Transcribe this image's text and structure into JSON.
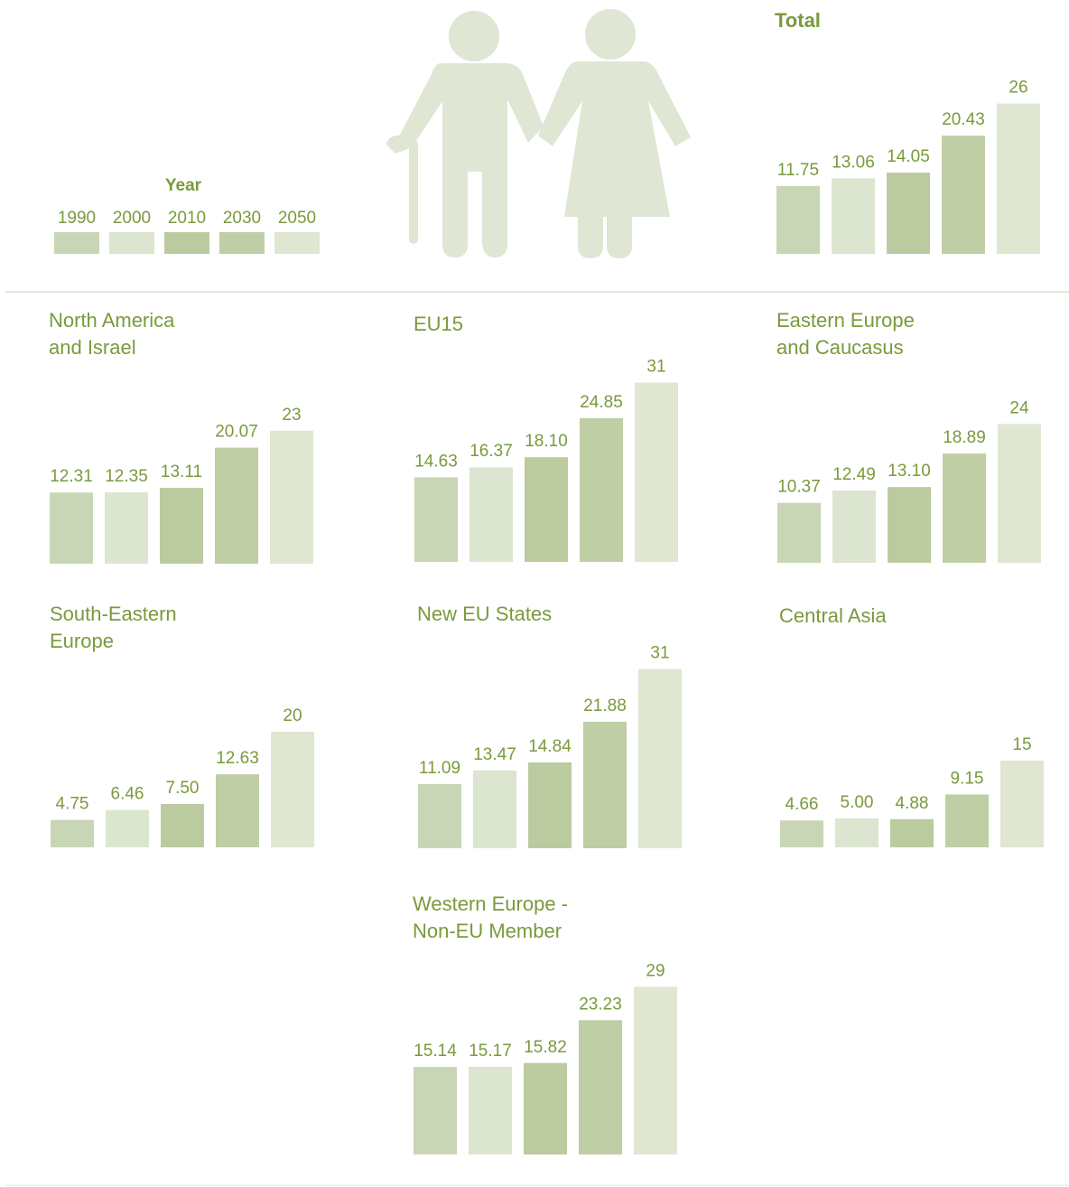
{
  "legend": {
    "title": "Year",
    "items": [
      {
        "name": "1990",
        "color": "#c9d6b6"
      },
      {
        "name": "2000",
        "color": "#dce5cf"
      },
      {
        "name": "2010",
        "color": "#bccb9f"
      },
      {
        "name": "2030",
        "color": "#bfcea5"
      },
      {
        "name": "2050",
        "color": "#dfe7d3"
      }
    ]
  },
  "chart_data": [
    {
      "type": "bar",
      "title": "Total",
      "values": [
        11.75,
        13.06,
        14.05,
        20.43,
        26
      ]
    },
    {
      "type": "bar",
      "title": "North America\nand Israel",
      "values": [
        12.31,
        12.35,
        13.11,
        20.07,
        23
      ]
    },
    {
      "type": "bar",
      "title": "EU15",
      "values": [
        14.63,
        16.37,
        18.1,
        24.85,
        31
      ],
      "value_labels": [
        "14.63",
        "16.37",
        "18.10",
        "24.85",
        "31"
      ]
    },
    {
      "type": "bar",
      "title": "Eastern Europe\nand Caucasus",
      "values": [
        10.37,
        12.49,
        13.1,
        18.89,
        24
      ],
      "value_labels": [
        "10.37",
        "12.49",
        "13.10",
        "18.89",
        "24"
      ]
    },
    {
      "type": "bar",
      "title": "South-Eastern\nEurope",
      "values": [
        4.75,
        6.46,
        7.5,
        12.63,
        20
      ],
      "value_labels": [
        "4.75",
        "6.46",
        "7.50",
        "12.63",
        "20"
      ]
    },
    {
      "type": "bar",
      "title": "New EU States",
      "values": [
        11.09,
        13.47,
        14.84,
        21.88,
        31
      ]
    },
    {
      "type": "bar",
      "title": "Central Asia",
      "values": [
        4.66,
        5,
        4.88,
        9.15,
        15
      ],
      "value_labels": [
        "4.66",
        "5.00",
        "4.88",
        "9.15",
        "15"
      ]
    },
    {
      "type": "bar",
      "title": "Western Europe -\nNon-EU Member",
      "values": [
        15.14,
        15.17,
        15.82,
        23.23,
        29
      ]
    }
  ]
}
